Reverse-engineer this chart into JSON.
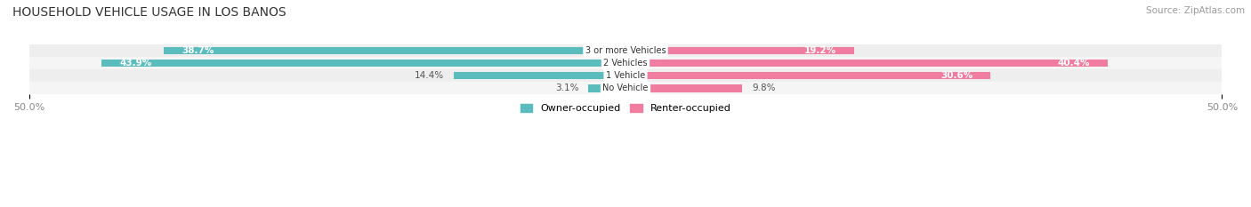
{
  "title": "HOUSEHOLD VEHICLE USAGE IN LOS BANOS",
  "source": "Source: ZipAtlas.com",
  "categories": [
    "3 or more Vehicles",
    "2 Vehicles",
    "1 Vehicle",
    "No Vehicle"
  ],
  "owner_values": [
    38.7,
    43.9,
    14.4,
    3.1
  ],
  "renter_values": [
    19.2,
    40.4,
    30.6,
    9.8
  ],
  "owner_color": "#5bbcbd",
  "renter_color": "#f07ca0",
  "label_dark_color": "#555555",
  "label_light_color": "#ffffff",
  "xlim": [
    -50,
    50
  ],
  "legend_owner": "Owner-occupied",
  "legend_renter": "Renter-occupied",
  "title_fontsize": 10,
  "source_fontsize": 7.5,
  "bar_height": 0.62,
  "row_bg_colors": [
    "#eeeeee",
    "#f5f5f5",
    "#eeeeee",
    "#f5f5f5"
  ],
  "inside_threshold": 15
}
